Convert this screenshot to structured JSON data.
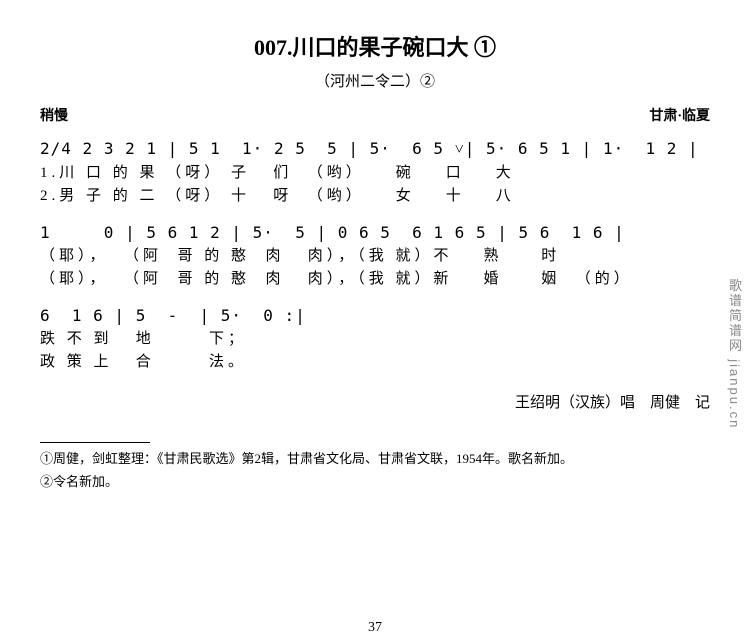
{
  "title": "007.川口的果子碗口大 ①",
  "subtitle": "（河州二令二）②",
  "tempo": "稍慢",
  "origin": "甘肃·临夏",
  "notation": {
    "time_sig": "2/4",
    "line1_notes": "2 3 2 1 | 5 1  1· 2 5  5 | 5·  6 5 ˅| 5· 6 5 1 | 1·  1 2 |",
    "line1_lyric_a": "1.川 口 的 果 （呀） 子   们  （哟）    碗    口    大",
    "line1_lyric_b": "2.男 子 的 二 （呀） 十   呀  （哟）    女    十    八",
    "line2_notes": "1     0 | 5 6 1 2 | 5·  5 | 0 6 5  6 1 6 5 | 5 6  1 6 |",
    "line2_lyric_a": "（耶），  （阿  哥 的 憨  肉   肉），（我 就）不    熟     时",
    "line2_lyric_b": "（耶），  （阿  哥 的 憨  肉   肉），（我 就）新    婚     姻  （的）",
    "line3_notes": "6  1 6 | 5  -  | 5·  0 :|",
    "line3_lyric_a": "跌 不 到   地       下；",
    "line3_lyric_b": "政 策 上   合       法。"
  },
  "credit": "王绍明（汉族）唱　周健　记",
  "footnotes": {
    "f1": "①周健，剑虹整理：《甘肃民歌选》第2辑，甘肃省文化局、甘肃省文联，1954年。歌名新加。",
    "f2": "②令名新加。"
  },
  "page_number": "37",
  "watermark": "歌谱简谱网  jianpu.cn"
}
